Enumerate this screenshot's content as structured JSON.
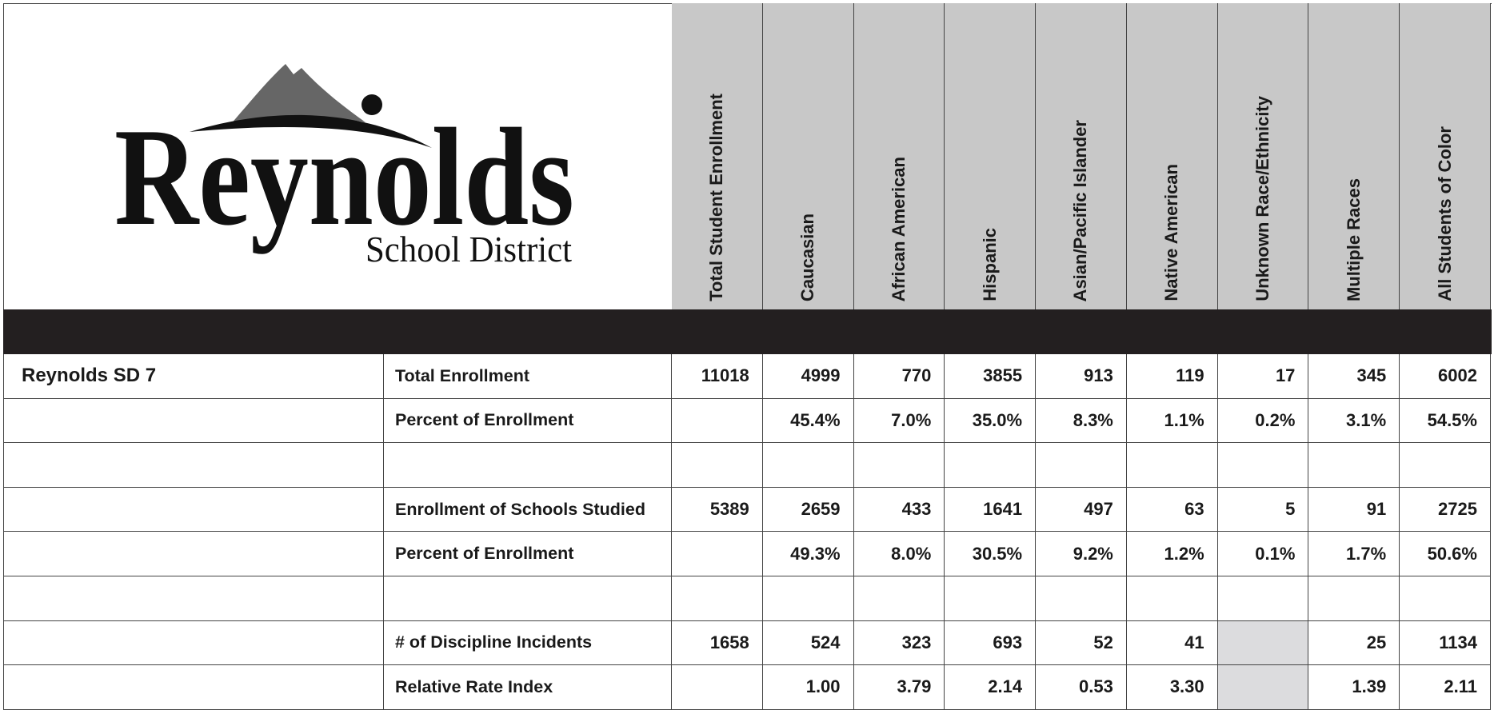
{
  "logo": {
    "name": "Reynolds",
    "subtitle": "School District"
  },
  "table": {
    "columns": [
      "Total Student Enrollment",
      "Caucasian",
      "African American",
      "Hispanic",
      "Asian/Pacific Islander",
      "Native American",
      "Unknown Race/Ethnicity",
      "Multiple Races",
      "All Students of Color"
    ],
    "groups": [
      {
        "rows": [
          {
            "entity": "Reynolds SD 7",
            "label": "Total Enrollment",
            "cells": [
              "11018",
              "4999",
              "770",
              "3855",
              "913",
              "119",
              "17",
              "345",
              "6002"
            ]
          },
          {
            "label": "Percent of Enrollment",
            "cells": [
              null,
              "45.4%",
              "7.0%",
              "35.0%",
              "8.3%",
              "1.1%",
              "0.2%",
              "3.1%",
              "54.5%"
            ]
          }
        ]
      },
      {
        "rows": [
          {
            "label": "Enrollment of Schools Studied",
            "cells": [
              "5389",
              "2659",
              "433",
              "1641",
              "497",
              "63",
              "5",
              "91",
              "2725"
            ]
          },
          {
            "label": "Percent of Enrollment",
            "cells": [
              null,
              "49.3%",
              "8.0%",
              "30.5%",
              "9.2%",
              "1.2%",
              "0.1%",
              "1.7%",
              "50.6%"
            ]
          }
        ]
      },
      {
        "shaded_column": 6,
        "rows": [
          {
            "label": "# of Discipline Incidents",
            "cells": [
              "1658",
              "524",
              "323",
              "693",
              "52",
              "41",
              null,
              "25",
              "1134"
            ]
          },
          {
            "label": "Relative Rate Index",
            "cells": [
              null,
              "1.00",
              "3.79",
              "2.14",
              "0.53",
              "3.30",
              null,
              "1.39",
              "2.11"
            ]
          }
        ]
      }
    ]
  }
}
